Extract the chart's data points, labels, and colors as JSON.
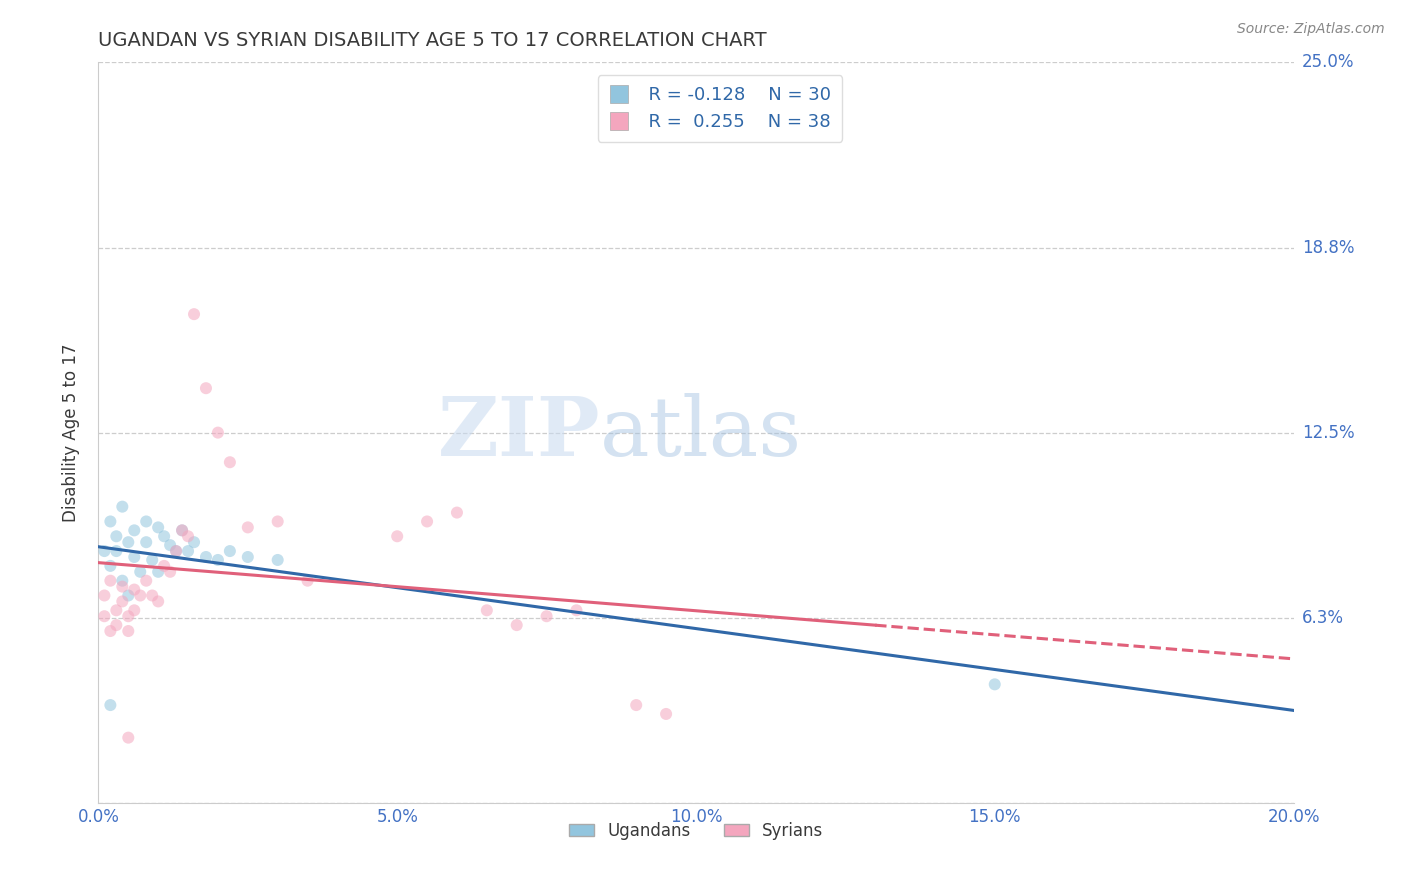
{
  "title": "UGANDAN VS SYRIAN DISABILITY AGE 5 TO 17 CORRELATION CHART",
  "source": "Source: ZipAtlas.com",
  "ylabel": "Disability Age 5 to 17",
  "xlabel": "",
  "xlim": [
    0.0,
    0.2
  ],
  "ylim": [
    0.0,
    0.25
  ],
  "xticks": [
    0.0,
    0.05,
    0.1,
    0.15,
    0.2
  ],
  "xticklabels": [
    "0.0%",
    "5.0%",
    "10.0%",
    "15.0%",
    "20.0%"
  ],
  "ytick_positions": [
    0.0,
    0.0625,
    0.125,
    0.1875,
    0.25
  ],
  "yticklabels_right": [
    "",
    "6.3%",
    "12.5%",
    "18.8%",
    "25.0%"
  ],
  "ugandan_x": [
    0.001,
    0.002,
    0.002,
    0.003,
    0.003,
    0.004,
    0.004,
    0.005,
    0.005,
    0.006,
    0.006,
    0.007,
    0.008,
    0.008,
    0.009,
    0.01,
    0.01,
    0.011,
    0.012,
    0.013,
    0.014,
    0.015,
    0.016,
    0.018,
    0.02,
    0.022,
    0.025,
    0.03,
    0.15,
    0.002
  ],
  "ugandan_y": [
    0.085,
    0.095,
    0.08,
    0.09,
    0.085,
    0.1,
    0.075,
    0.088,
    0.07,
    0.092,
    0.083,
    0.078,
    0.095,
    0.088,
    0.082,
    0.093,
    0.078,
    0.09,
    0.087,
    0.085,
    0.092,
    0.085,
    0.088,
    0.083,
    0.082,
    0.085,
    0.083,
    0.082,
    0.04,
    0.033
  ],
  "syrian_x": [
    0.001,
    0.001,
    0.002,
    0.002,
    0.003,
    0.003,
    0.004,
    0.004,
    0.005,
    0.005,
    0.006,
    0.006,
    0.007,
    0.008,
    0.009,
    0.01,
    0.011,
    0.012,
    0.013,
    0.014,
    0.015,
    0.016,
    0.018,
    0.02,
    0.022,
    0.025,
    0.03,
    0.035,
    0.05,
    0.055,
    0.06,
    0.065,
    0.07,
    0.075,
    0.08,
    0.09,
    0.095,
    0.005
  ],
  "syrian_y": [
    0.07,
    0.063,
    0.075,
    0.058,
    0.065,
    0.06,
    0.073,
    0.068,
    0.063,
    0.058,
    0.072,
    0.065,
    0.07,
    0.075,
    0.07,
    0.068,
    0.08,
    0.078,
    0.085,
    0.092,
    0.09,
    0.165,
    0.14,
    0.125,
    0.115,
    0.093,
    0.095,
    0.075,
    0.09,
    0.095,
    0.098,
    0.065,
    0.06,
    0.063,
    0.065,
    0.033,
    0.03,
    0.022
  ],
  "ugandan_color": "#92c5de",
  "syrian_color": "#f4a6be",
  "ugandan_line_color": "#3068a8",
  "syrian_line_color": "#e0607a",
  "ugandan_trend_start_x": 0.0,
  "ugandan_trend_end_x": 0.2,
  "syrian_trend_solid_end_x": 0.13,
  "syrian_trend_dash_end_x": 0.2,
  "legend_r_ugandan": "R = -0.128",
  "legend_n_ugandan": "N = 30",
  "legend_r_syrian": "R =  0.255",
  "legend_n_syrian": "N = 38",
  "legend_label_ugandan": "Ugandans",
  "legend_label_syrian": "Syrians",
  "watermark_zip": "ZIP",
  "watermark_atlas": "atlas",
  "background_color": "#ffffff",
  "grid_color": "#c8c8c8",
  "title_color": "#3a3a3a",
  "axis_label_color": "#3a3a3a",
  "tick_label_color": "#4472c4",
  "source_color": "#888888",
  "marker_size": 75,
  "marker_alpha": 0.55,
  "line_width": 2.2
}
